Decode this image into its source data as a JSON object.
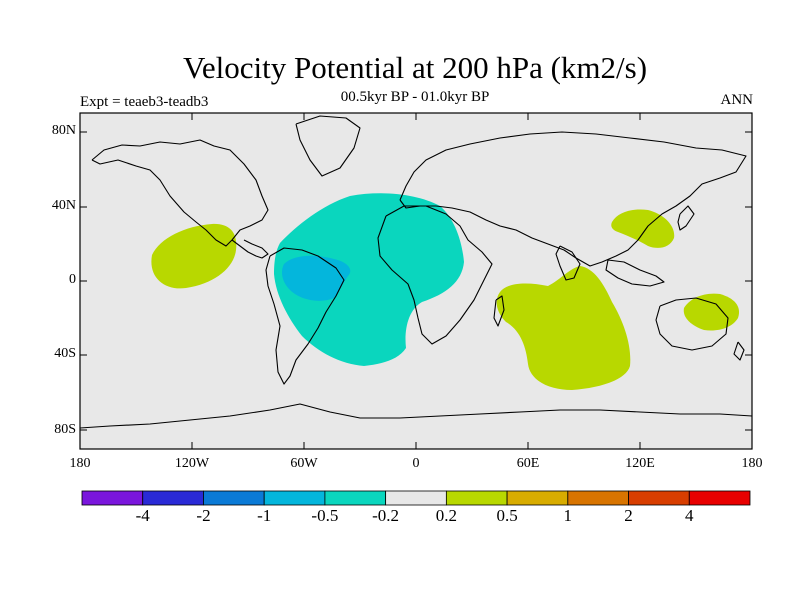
{
  "title": "Velocity Potential at 200 hPa (km2/s)",
  "subtitle": "00.5kyr BP - 01.0kyr BP",
  "left_label": "Expt = teaeb3-teadb3",
  "right_label": "ANN",
  "axes": {
    "y_ticks": [
      "80N",
      "40N",
      "0",
      "40S",
      "80S"
    ],
    "x_ticks": [
      "180",
      "120W",
      "60W",
      "0",
      "60E",
      "120E",
      "180"
    ]
  },
  "colorbar": {
    "colors": [
      "#7a16dc",
      "#2a2ad6",
      "#0a7ad6",
      "#04b6dc",
      "#0ad6be",
      "#e8e8e8",
      "#b8d800",
      "#d8ac00",
      "#d87400",
      "#d83e00",
      "#e80000"
    ],
    "labels": [
      "-4",
      "-2",
      "-1",
      "-0.5",
      "-0.2",
      "0.2",
      "0.5",
      "1",
      "2",
      "4"
    ]
  },
  "colors": {
    "background": "#e8e8e8",
    "positive": "#b8d800",
    "negative_light": "#0ad6be",
    "negative_mid": "#04b6dc",
    "coast": "#000000"
  }
}
